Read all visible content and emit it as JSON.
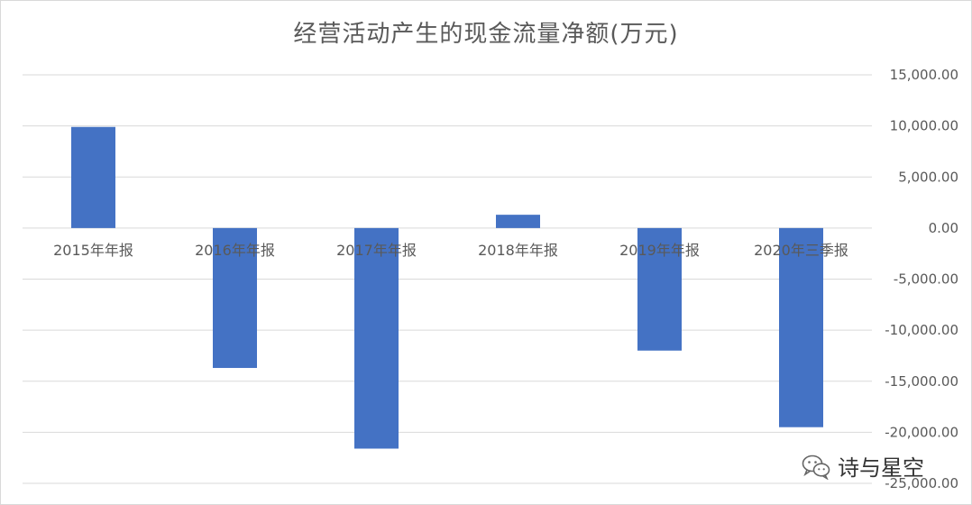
{
  "chart_data": {
    "type": "bar",
    "title": "经营活动产生的现金流量净额(万元)",
    "categories": [
      "2015年年报",
      "2016年年报",
      "2017年年报",
      "2018年年报",
      "2019年年报",
      "2020年三季报"
    ],
    "values": [
      9900,
      -13700,
      -21600,
      1300,
      -12000,
      -19500
    ],
    "y_ticks": [
      "15,000.00",
      "10,000.00",
      "5,000.00",
      "0.00",
      "-5,000.00",
      "-10,000.00",
      "-15,000.00",
      "-20,000.00",
      "-25,000.00"
    ],
    "ylim": [
      -25000,
      15000
    ],
    "ylabel": "",
    "xlabel": "",
    "y_axis_side": "right",
    "grid": true,
    "legend": "none",
    "bar_color": "#4472c4"
  },
  "watermark": {
    "icon": "wechat-icon",
    "text": "诗与星空"
  }
}
